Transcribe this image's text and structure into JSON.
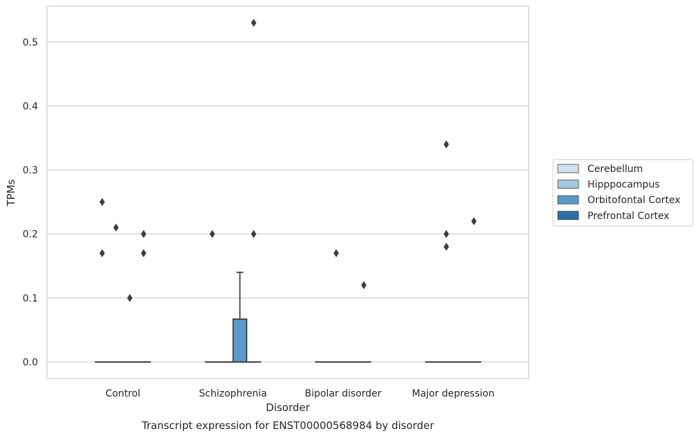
{
  "chart_data": {
    "type": "boxplot",
    "xlabel": "Disorder",
    "ylabel": "TPMs",
    "caption": "Transcript expression for ENST00000568984 by disorder",
    "ylim": [
      -0.026,
      0.556
    ],
    "yticks": [
      "0.0",
      "0.1",
      "0.2",
      "0.3",
      "0.4",
      "0.5"
    ],
    "ytick_values": [
      0.0,
      0.1,
      0.2,
      0.3,
      0.4,
      0.5
    ],
    "grid": "horizontal",
    "legend_position": "right",
    "categories": [
      "Control",
      "Schizophrenia",
      "Bipolar disorder",
      "Major depression"
    ],
    "series": [
      {
        "name": "Cerebellum",
        "color": "#d0e1f2"
      },
      {
        "name": "Hipppocampus",
        "color": "#a3c8e0"
      },
      {
        "name": "Orbitofontal Cortex",
        "color": "#5b9ac8"
      },
      {
        "name": "Prefrontal Cortex",
        "color": "#2d6ea8"
      }
    ],
    "boxes": [
      {
        "category": "Control",
        "series": "Cerebellum",
        "q1": 0,
        "median": 0,
        "q3": 0,
        "whisker_low": 0,
        "whisker_high": 0
      },
      {
        "category": "Control",
        "series": "Hipppocampus",
        "q1": 0,
        "median": 0,
        "q3": 0,
        "whisker_low": 0,
        "whisker_high": 0
      },
      {
        "category": "Control",
        "series": "Orbitofontal Cortex",
        "q1": 0,
        "median": 0,
        "q3": 0,
        "whisker_low": 0,
        "whisker_high": 0
      },
      {
        "category": "Control",
        "series": "Prefrontal Cortex",
        "q1": 0,
        "median": 0,
        "q3": 0,
        "whisker_low": 0,
        "whisker_high": 0
      },
      {
        "category": "Schizophrenia",
        "series": "Cerebellum",
        "q1": 0,
        "median": 0,
        "q3": 0,
        "whisker_low": 0,
        "whisker_high": 0
      },
      {
        "category": "Schizophrenia",
        "series": "Hipppocampus",
        "q1": 0,
        "median": 0,
        "q3": 0,
        "whisker_low": 0,
        "whisker_high": 0
      },
      {
        "category": "Schizophrenia",
        "series": "Orbitofontal Cortex",
        "q1": 0,
        "median": 0,
        "q3": 0.067,
        "whisker_low": 0,
        "whisker_high": 0.14
      },
      {
        "category": "Schizophrenia",
        "series": "Prefrontal Cortex",
        "q1": 0,
        "median": 0,
        "q3": 0,
        "whisker_low": 0,
        "whisker_high": 0
      },
      {
        "category": "Bipolar disorder",
        "series": "Cerebellum",
        "q1": 0,
        "median": 0,
        "q3": 0,
        "whisker_low": 0,
        "whisker_high": 0
      },
      {
        "category": "Bipolar disorder",
        "series": "Hipppocampus",
        "q1": 0,
        "median": 0,
        "q3": 0,
        "whisker_low": 0,
        "whisker_high": 0
      },
      {
        "category": "Bipolar disorder",
        "series": "Orbitofontal Cortex",
        "q1": 0,
        "median": 0,
        "q3": 0,
        "whisker_low": 0,
        "whisker_high": 0
      },
      {
        "category": "Bipolar disorder",
        "series": "Prefrontal Cortex",
        "q1": 0,
        "median": 0,
        "q3": 0,
        "whisker_low": 0,
        "whisker_high": 0
      },
      {
        "category": "Major depression",
        "series": "Cerebellum",
        "q1": 0,
        "median": 0,
        "q3": 0,
        "whisker_low": 0,
        "whisker_high": 0
      },
      {
        "category": "Major depression",
        "series": "Hipppocampus",
        "q1": 0,
        "median": 0,
        "q3": 0,
        "whisker_low": 0,
        "whisker_high": 0
      },
      {
        "category": "Major depression",
        "series": "Orbitofontal Cortex",
        "q1": 0,
        "median": 0,
        "q3": 0,
        "whisker_low": 0,
        "whisker_high": 0
      },
      {
        "category": "Major depression",
        "series": "Prefrontal Cortex",
        "q1": 0,
        "median": 0,
        "q3": 0,
        "whisker_low": 0,
        "whisker_high": 0
      }
    ],
    "outliers": [
      {
        "category": "Control",
        "series": "Cerebellum",
        "values": [
          0.25,
          0.17
        ]
      },
      {
        "category": "Control",
        "series": "Hipppocampus",
        "values": [
          0.21
        ]
      },
      {
        "category": "Control",
        "series": "Orbitofontal Cortex",
        "values": [
          0.1
        ]
      },
      {
        "category": "Control",
        "series": "Prefrontal Cortex",
        "values": [
          0.2,
          0.17
        ]
      },
      {
        "category": "Schizophrenia",
        "series": "Cerebellum",
        "values": [
          0.2
        ]
      },
      {
        "category": "Schizophrenia",
        "series": "Prefrontal Cortex",
        "values": [
          0.53,
          0.2
        ]
      },
      {
        "category": "Bipolar disorder",
        "series": "Hipppocampus",
        "values": [
          0.17
        ]
      },
      {
        "category": "Bipolar disorder",
        "series": "Prefrontal Cortex",
        "values": [
          0.12
        ]
      },
      {
        "category": "Major depression",
        "series": "Hipppocampus",
        "values": [
          0.34,
          0.2,
          0.18
        ]
      },
      {
        "category": "Major depression",
        "series": "Prefrontal Cortex",
        "values": [
          0.22
        ]
      }
    ]
  }
}
